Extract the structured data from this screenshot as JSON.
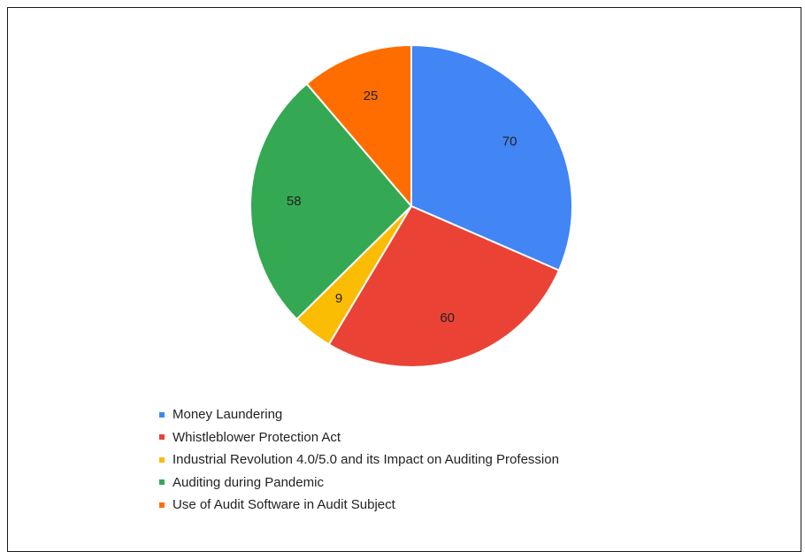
{
  "chart_data": {
    "type": "pie",
    "title": "",
    "start_angle_deg": 0,
    "direction": "clockwise",
    "legend_position": "bottom",
    "slices": [
      {
        "label": "Money Laundering",
        "value": 70,
        "color": "#4285f4"
      },
      {
        "label": "Whistleblower Protection Act",
        "value": 60,
        "color": "#ea4335"
      },
      {
        "label": "Industrial Revolution 4.0/5.0 and its Impact on Auditing Profession",
        "value": 9,
        "color": "#fbbc04"
      },
      {
        "label": "Auditing during Pandemic",
        "value": 58,
        "color": "#34a853"
      },
      {
        "label": "Use of Audit Software in Audit Subject",
        "value": 25,
        "color": "#ff6d01"
      }
    ]
  }
}
